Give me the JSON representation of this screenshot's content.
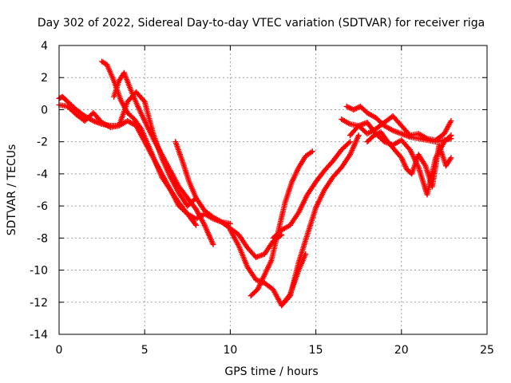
{
  "chart_data": {
    "type": "scatter",
    "title": "Day 302 of 2022, Sidereal Day-to-day VTEC variation (SDTVAR) for receiver riga",
    "xlabel": "GPS time / hours",
    "ylabel": "SDTVAR / TECUs",
    "xlim": [
      0,
      25
    ],
    "ylim": [
      -14,
      4
    ],
    "x_ticks": [
      0,
      5,
      10,
      15,
      20,
      25
    ],
    "y_ticks": [
      -14,
      -12,
      -10,
      -8,
      -6,
      -4,
      -2,
      0,
      2,
      4
    ],
    "x_tick_labels": [
      "0",
      "5",
      "10",
      "15",
      "20",
      "25"
    ],
    "y_tick_labels": [
      "-14",
      "-12",
      "-10",
      "-8",
      "-6",
      "-4",
      "-2",
      "0",
      "2",
      "4"
    ],
    "grid": true,
    "marker": "+",
    "color": "#ff0000",
    "series": [
      {
        "x": [
          0.0,
          0.2,
          0.5,
          1.0,
          1.5,
          2.0,
          2.5,
          3.0,
          3.5,
          4.0,
          4.5,
          5.0,
          5.5,
          6.0,
          6.5,
          7.0,
          7.5,
          8.0,
          8.5,
          9.0,
          9.5,
          10.0
        ],
        "y": [
          0.7,
          0.8,
          0.5,
          0.0,
          -0.4,
          -0.7,
          -0.9,
          -1.0,
          -1.0,
          -0.7,
          -1.0,
          -2.0,
          -3.0,
          -4.0,
          -5.0,
          -5.8,
          -6.5,
          -6.8,
          -6.5,
          -6.8,
          -7.0,
          -7.1
        ]
      },
      {
        "x": [
          0.0,
          0.5,
          1.0,
          1.5,
          2.0,
          2.5,
          3.0,
          3.5,
          4.0,
          4.5,
          5.0,
          5.5,
          6.0,
          6.5,
          7.0,
          7.5,
          8.0
        ],
        "y": [
          0.3,
          0.2,
          -0.3,
          -0.7,
          -0.2,
          -0.8,
          -1.1,
          -1.0,
          0.5,
          1.1,
          0.5,
          -1.5,
          -3.0,
          -4.2,
          -5.2,
          -6.0,
          -5.5
        ]
      },
      {
        "x": [
          2.5,
          2.8,
          3.2,
          3.6,
          4.0,
          4.4,
          4.8,
          5.2,
          5.6,
          6.0,
          6.5,
          7.0,
          7.5,
          8.0
        ],
        "y": [
          3.0,
          2.8,
          1.8,
          0.6,
          -0.2,
          -0.6,
          -1.2,
          -2.2,
          -3.2,
          -4.2,
          -5.0,
          -6.0,
          -6.5,
          -7.2
        ]
      },
      {
        "x": [
          3.2,
          3.5,
          3.8,
          4.2,
          4.6,
          5.0,
          5.5,
          6.0,
          6.5,
          7.0,
          7.5,
          8.0,
          8.5,
          9.0
        ],
        "y": [
          0.8,
          1.8,
          2.3,
          1.2,
          0.2,
          -0.7,
          -1.8,
          -2.8,
          -3.8,
          -4.8,
          -5.5,
          -6.2,
          -7.2,
          -8.4
        ]
      },
      {
        "x": [
          6.8,
          7.2,
          7.6,
          8.0,
          8.5,
          9.0,
          9.5,
          10.0,
          10.5,
          11.0,
          11.5,
          12.0,
          12.5,
          13.0
        ],
        "y": [
          -2.0,
          -3.2,
          -4.5,
          -5.5,
          -6.3,
          -6.7,
          -7.0,
          -7.4,
          -7.8,
          -8.6,
          -9.2,
          -9.0,
          -8.2,
          -7.8
        ]
      },
      {
        "x": [
          10.0,
          10.5,
          11.0,
          11.5,
          12.0,
          12.5,
          13.0,
          13.5,
          14.0,
          14.4
        ],
        "y": [
          -7.5,
          -8.5,
          -9.8,
          -10.6,
          -10.8,
          -11.2,
          -12.2,
          -11.5,
          -10.0,
          -9.0
        ]
      },
      {
        "x": [
          11.2,
          11.6,
          12.0,
          12.4,
          12.8,
          13.2,
          13.6,
          14.0,
          14.4,
          14.8
        ],
        "y": [
          -11.6,
          -11.2,
          -10.3,
          -9.4,
          -7.6,
          -5.8,
          -4.5,
          -3.6,
          -2.9,
          -2.6
        ]
      },
      {
        "x": [
          12.5,
          13.0,
          13.5,
          14.0,
          14.5,
          15.0,
          15.5,
          16.0,
          16.5,
          17.0
        ],
        "y": [
          -8.0,
          -7.5,
          -7.2,
          -6.4,
          -5.3,
          -4.5,
          -3.8,
          -3.2,
          -2.5,
          -2.0
        ]
      },
      {
        "x": [
          13.0,
          13.5,
          14.0,
          14.5,
          15.0,
          15.5,
          16.0,
          16.5,
          17.0,
          17.5
        ],
        "y": [
          -12.2,
          -11.6,
          -9.5,
          -7.8,
          -6.1,
          -5.0,
          -4.2,
          -3.6,
          -2.8,
          -1.6
        ]
      },
      {
        "x": [
          16.5,
          17.0,
          17.5,
          18.0,
          18.5,
          19.0,
          19.5,
          20.0,
          20.5,
          21.0,
          21.5,
          22.0,
          22.5,
          22.9
        ],
        "y": [
          -0.6,
          -0.9,
          -1.0,
          -1.5,
          -1.2,
          -0.8,
          -0.4,
          -1.0,
          -1.6,
          -1.5,
          -1.8,
          -1.9,
          -1.5,
          -0.7
        ]
      },
      {
        "x": [
          16.8,
          17.2,
          17.6,
          18.0,
          18.5,
          19.0,
          19.5,
          20.0,
          20.5,
          21.0,
          21.5,
          22.0,
          22.5,
          22.9
        ],
        "y": [
          0.2,
          0.0,
          0.2,
          -0.2,
          -0.5,
          -1.0,
          -1.3,
          -1.5,
          -1.7,
          -1.8,
          -1.9,
          -2.0,
          -1.9,
          -1.8
        ]
      },
      {
        "x": [
          17.0,
          17.5,
          18.0,
          18.5,
          19.0,
          19.5,
          20.0,
          20.5,
          21.0,
          21.5,
          22.0,
          22.5,
          22.9
        ],
        "y": [
          -1.6,
          -1.0,
          -0.8,
          -1.5,
          -2.0,
          -2.2,
          -1.9,
          -2.5,
          -3.6,
          -5.3,
          -3.0,
          -2.0,
          -1.6
        ]
      },
      {
        "x": [
          18.0,
          18.4,
          18.8,
          19.2,
          19.6,
          20.0,
          20.3,
          20.6,
          21.0,
          21.4,
          21.8,
          22.2,
          22.6,
          22.9
        ],
        "y": [
          -2.0,
          -1.6,
          -1.4,
          -2.0,
          -2.5,
          -3.0,
          -3.7,
          -4.0,
          -2.8,
          -3.5,
          -4.8,
          -2.2,
          -3.5,
          -3.0
        ]
      }
    ]
  }
}
